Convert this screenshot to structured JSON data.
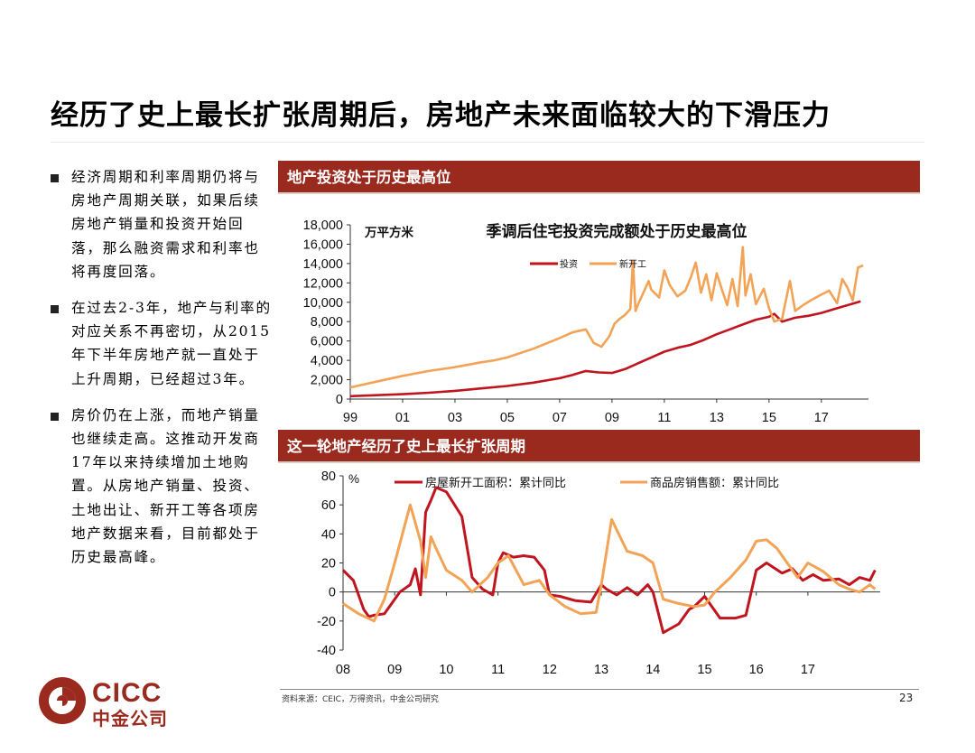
{
  "page": {
    "title": "经历了史上最长扩张周期后，房地产未来面临较大的下滑压力",
    "bullets": [
      "经济周期和利率周期仍将与房地产周期关联，如果后续房地产销量和投资开始回落，那么融资需求和利率也将再度回落。",
      "在过去2-3年，地产与利率的对应关系不再密切，从2015年下半年房地产就一直处于上升周期，已经超过3年。",
      "房价仍在上涨，而地产销量也继续走高。这推动开发商17年以来持续增加土地购置。从房地产销量、投资、土地出让、新开工等各项房地产数据来看，目前都处于历史最高峰。"
    ],
    "source": "资料来源：CEIC，万得资讯，中金公司研究",
    "page_number": "23",
    "logo": {
      "en": "CICC",
      "cn": "中金公司"
    }
  },
  "colors": {
    "accent": "#9b2a1e",
    "series_red": "#c0151e",
    "series_orange": "#f2a356"
  },
  "chart_data": [
    {
      "type": "line",
      "panel_header": "地产投资处于历史最高位",
      "title": "季调后住宅投资完成额处于历史最高位",
      "ylabel": "万平方米",
      "ylim": [
        0,
        18000
      ],
      "yticks": [
        "0",
        "2,000",
        "4,000",
        "6,000",
        "8,000",
        "10,000",
        "12,000",
        "14,000",
        "16,000",
        "18,000"
      ],
      "xlim": [
        1999,
        2018.8
      ],
      "xticks": [
        "99",
        "01",
        "03",
        "05",
        "07",
        "09",
        "11",
        "13",
        "15",
        "17"
      ],
      "grid": false,
      "legend": "top-center",
      "series": [
        {
          "name": "投资",
          "color": "#c0151e",
          "x": [
            1999.0,
            2000.0,
            2001.0,
            2002.0,
            2003.0,
            2004.0,
            2005.0,
            2006.0,
            2007.0,
            2007.5,
            2008.0,
            2008.5,
            2009.0,
            2009.5,
            2010.0,
            2010.5,
            2011.0,
            2011.5,
            2012.0,
            2012.5,
            2013.0,
            2013.5,
            2014.0,
            2014.5,
            2015.0,
            2015.2,
            2015.5,
            2016.0,
            2016.5,
            2017.0,
            2017.5,
            2018.0,
            2018.5
          ],
          "y": [
            300,
            400,
            500,
            650,
            850,
            1100,
            1350,
            1700,
            2150,
            2500,
            2900,
            2750,
            2700,
            3100,
            3700,
            4300,
            4900,
            5300,
            5600,
            6100,
            6700,
            7200,
            7700,
            8200,
            8500,
            8800,
            8000,
            8400,
            8600,
            8900,
            9300,
            9700,
            10100
          ]
        },
        {
          "name": "新开工",
          "color": "#f2a356",
          "x": [
            1999.0,
            2000.0,
            2001.0,
            2002.0,
            2003.0,
            2004.0,
            2004.5,
            2005.0,
            2006.0,
            2007.0,
            2007.5,
            2008.0,
            2008.3,
            2008.6,
            2008.9,
            2009.1,
            2009.3,
            2009.5,
            2009.7,
            2009.8,
            2009.9,
            2010.0,
            2010.2,
            2010.4,
            2010.5,
            2010.8,
            2011.0,
            2011.2,
            2011.5,
            2011.8,
            2012.0,
            2012.2,
            2012.4,
            2012.6,
            2012.8,
            2013.0,
            2013.2,
            2013.4,
            2013.6,
            2013.8,
            2014.0,
            2014.1,
            2014.3,
            2014.5,
            2014.8,
            2015.0,
            2015.2,
            2015.5,
            2015.8,
            2016.0,
            2016.3,
            2016.6,
            2017.0,
            2017.3,
            2017.6,
            2017.8,
            2018.0,
            2018.2,
            2018.4,
            2018.6
          ],
          "y": [
            1200,
            1800,
            2400,
            2900,
            3300,
            3800,
            4000,
            4300,
            5200,
            6300,
            6900,
            7200,
            5800,
            5400,
            6500,
            7800,
            8300,
            8700,
            9300,
            14200,
            9100,
            9800,
            11000,
            12200,
            11300,
            10500,
            13300,
            11800,
            10600,
            11200,
            12500,
            14100,
            11000,
            12900,
            10200,
            13000,
            11300,
            9700,
            12400,
            9600,
            15700,
            10700,
            12900,
            9800,
            11400,
            9400,
            8000,
            8300,
            12200,
            9100,
            9700,
            10200,
            10800,
            11200,
            9900,
            12400,
            11500,
            10200,
            13600,
            13800
          ]
        }
      ]
    },
    {
      "type": "line",
      "panel_header": "这一轮地产经历了史上最长扩张周期",
      "title": "",
      "ylabel": "%",
      "ylim": [
        -40,
        80
      ],
      "yticks": [
        "-40",
        "-20",
        "0",
        "20",
        "40",
        "60",
        "80"
      ],
      "xlim": [
        2008,
        2018.4
      ],
      "xticks": [
        "08",
        "09",
        "10",
        "11",
        "12",
        "13",
        "14",
        "15",
        "16",
        "17"
      ],
      "grid": false,
      "legend": "top",
      "series": [
        {
          "name": "房屋新开工面积：累计同比",
          "color": "#c0151e",
          "x": [
            2008.0,
            2008.2,
            2008.4,
            2008.5,
            2008.6,
            2008.8,
            2009.0,
            2009.1,
            2009.3,
            2009.4,
            2009.5,
            2009.6,
            2009.7,
            2009.8,
            2010.0,
            2010.3,
            2010.5,
            2010.7,
            2010.9,
            2011.0,
            2011.1,
            2011.3,
            2011.5,
            2011.7,
            2011.9,
            2012.0,
            2012.2,
            2012.5,
            2012.8,
            2013.0,
            2013.1,
            2013.3,
            2013.5,
            2013.7,
            2013.9,
            2014.0,
            2014.2,
            2014.5,
            2014.7,
            2014.8,
            2015.0,
            2015.3,
            2015.6,
            2015.8,
            2016.0,
            2016.2,
            2016.5,
            2016.7,
            2016.9,
            2017.1,
            2017.3,
            2017.6,
            2017.8,
            2018.0,
            2018.2,
            2018.3
          ],
          "y": [
            15,
            8,
            -12,
            -17,
            -16,
            -15,
            -5,
            0,
            5,
            16,
            -2,
            55,
            63,
            72,
            69,
            52,
            10,
            2,
            -2,
            20,
            27,
            24,
            25,
            24,
            15,
            -2,
            -3,
            -6,
            -7,
            5,
            2,
            -2,
            3,
            -2,
            5,
            0,
            -28,
            -22,
            -12,
            -10,
            -3,
            -18,
            -18,
            -16,
            15,
            20,
            13,
            16,
            8,
            12,
            8,
            9,
            5,
            10,
            8,
            15
          ]
        },
        {
          "name": "商品房销售额：累计同比",
          "color": "#f2a356",
          "x": [
            2008.0,
            2008.3,
            2008.6,
            2008.8,
            2009.0,
            2009.3,
            2009.5,
            2009.6,
            2009.7,
            2009.8,
            2010.0,
            2010.3,
            2010.5,
            2010.8,
            2011.0,
            2011.2,
            2011.5,
            2011.8,
            2012.0,
            2012.3,
            2012.6,
            2012.9,
            2013.0,
            2013.2,
            2013.5,
            2013.8,
            2014.0,
            2014.2,
            2014.5,
            2014.8,
            2015.0,
            2015.2,
            2015.5,
            2015.8,
            2016.0,
            2016.2,
            2016.4,
            2016.6,
            2016.8,
            2017.0,
            2017.3,
            2017.6,
            2017.8,
            2018.0,
            2018.2,
            2018.3
          ],
          "y": [
            -8,
            -15,
            -20,
            -5,
            20,
            60,
            35,
            10,
            38,
            30,
            15,
            8,
            0,
            10,
            20,
            25,
            5,
            8,
            -2,
            -10,
            -15,
            -14,
            5,
            50,
            28,
            25,
            20,
            -5,
            -8,
            -10,
            -9,
            0,
            10,
            22,
            35,
            36,
            30,
            20,
            10,
            20,
            14,
            5,
            2,
            0,
            5,
            2
          ]
        }
      ]
    }
  ]
}
